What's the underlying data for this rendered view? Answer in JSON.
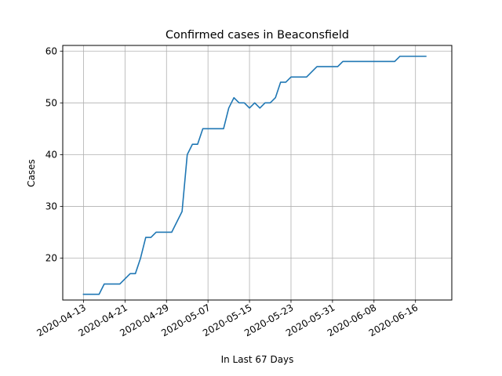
{
  "chart_data": {
    "type": "line",
    "title": "Confirmed cases in Beaconsfield",
    "xlabel": "In Last 67 Days",
    "ylabel": "Cases",
    "grid": true,
    "legend": "none",
    "ylim": [
      11.9,
      61.1
    ],
    "xlim": [
      "2020-04-09",
      "2020-06-23"
    ],
    "yticks": [
      20,
      30,
      40,
      50,
      60
    ],
    "xticks": [
      "2020-04-13",
      "2020-04-21",
      "2020-04-29",
      "2020-05-07",
      "2020-05-15",
      "2020-05-23",
      "2020-05-31",
      "2020-06-08",
      "2020-06-16"
    ],
    "series": [
      {
        "color": "#1f77b4",
        "x": [
          "2020-04-13",
          "2020-04-14",
          "2020-04-15",
          "2020-04-16",
          "2020-04-17",
          "2020-04-18",
          "2020-04-19",
          "2020-04-20",
          "2020-04-21",
          "2020-04-22",
          "2020-04-23",
          "2020-04-24",
          "2020-04-25",
          "2020-04-26",
          "2020-04-27",
          "2020-04-28",
          "2020-04-29",
          "2020-04-30",
          "2020-05-01",
          "2020-05-02",
          "2020-05-03",
          "2020-05-04",
          "2020-05-05",
          "2020-05-06",
          "2020-05-07",
          "2020-05-08",
          "2020-05-09",
          "2020-05-10",
          "2020-05-11",
          "2020-05-12",
          "2020-05-13",
          "2020-05-14",
          "2020-05-15",
          "2020-05-16",
          "2020-05-17",
          "2020-05-18",
          "2020-05-19",
          "2020-05-20",
          "2020-05-21",
          "2020-05-22",
          "2020-05-23",
          "2020-05-24",
          "2020-05-25",
          "2020-05-26",
          "2020-05-27",
          "2020-05-28",
          "2020-05-29",
          "2020-05-30",
          "2020-05-31",
          "2020-06-01",
          "2020-06-02",
          "2020-06-03",
          "2020-06-04",
          "2020-06-05",
          "2020-06-06",
          "2020-06-07",
          "2020-06-08",
          "2020-06-09",
          "2020-06-10",
          "2020-06-11",
          "2020-06-12",
          "2020-06-13",
          "2020-06-14",
          "2020-06-15",
          "2020-06-16",
          "2020-06-17",
          "2020-06-18"
        ],
        "values": [
          13,
          13,
          13,
          13,
          15,
          15,
          15,
          15,
          16,
          17,
          17,
          20,
          24,
          24,
          25,
          25,
          25,
          25,
          27,
          29,
          40,
          42,
          42,
          45,
          45,
          45,
          45,
          45,
          49,
          51,
          50,
          50,
          49,
          50,
          49,
          50,
          50,
          51,
          54,
          54,
          55,
          55,
          55,
          55,
          56,
          57,
          57,
          57,
          57,
          57,
          58,
          58,
          58,
          58,
          58,
          58,
          58,
          58,
          58,
          58,
          58,
          59,
          59,
          59,
          59,
          59,
          59
        ]
      }
    ]
  }
}
